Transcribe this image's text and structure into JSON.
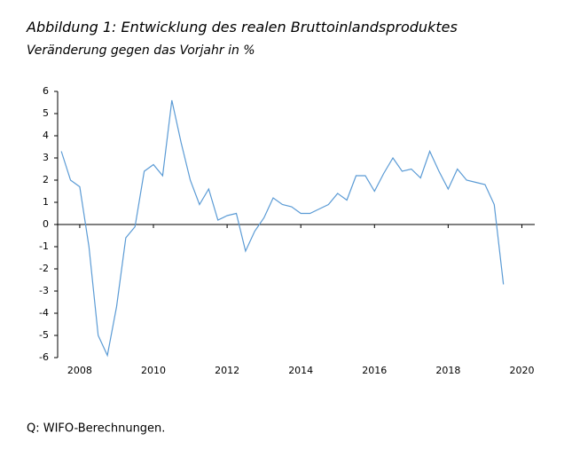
{
  "chart_data": {
    "type": "line",
    "title": "Abbildung 1: Entwicklung des realen Bruttoinlandsproduktes",
    "subtitle": "Veränderung gegen das Vorjahr in %",
    "source": "Q: WIFO-Berechnungen.",
    "color": "#5b9bd5",
    "x": [
      2007.5,
      2007.75,
      2008,
      2008.25,
      2008.5,
      2008.75,
      2009,
      2009.25,
      2009.5,
      2009.75,
      2010,
      2010.25,
      2010.5,
      2010.75,
      2011,
      2011.25,
      2011.5,
      2011.75,
      2012,
      2012.25,
      2012.5,
      2012.75,
      2013,
      2013.25,
      2013.5,
      2013.75,
      2014,
      2014.25,
      2014.5,
      2014.75,
      2015,
      2015.25,
      2015.5,
      2015.75,
      2016,
      2016.25,
      2016.5,
      2016.75,
      2017,
      2017.25,
      2017.5,
      2017.75,
      2018,
      2018.25,
      2018.5,
      2018.75,
      2019,
      2019.25,
      2019.5
    ],
    "values": [
      3.3,
      2.0,
      1.7,
      -1.0,
      -5.0,
      -5.9,
      -3.7,
      -0.6,
      -0.1,
      2.4,
      2.7,
      2.2,
      5.6,
      3.7,
      2.0,
      0.9,
      1.6,
      0.2,
      0.4,
      0.5,
      -1.2,
      -0.3,
      0.3,
      1.2,
      0.9,
      0.8,
      0.5,
      0.5,
      0.7,
      0.9,
      1.4,
      1.1,
      2.2,
      2.2,
      1.5,
      2.3,
      3.0,
      2.4,
      2.5,
      2.1,
      3.3,
      2.4,
      1.6,
      2.5,
      2.0,
      1.9,
      1.8,
      0.9,
      -2.7
    ],
    "xlim": [
      2007.4,
      2020.35
    ],
    "xticks": [
      2008,
      2010,
      2012,
      2014,
      2016,
      2018,
      2020
    ],
    "ylim": [
      -6,
      6
    ],
    "yticks": [
      -6,
      -5,
      -4,
      -3,
      -2,
      -1,
      0,
      1,
      2,
      3,
      4,
      5,
      6
    ],
    "grid": false
  }
}
